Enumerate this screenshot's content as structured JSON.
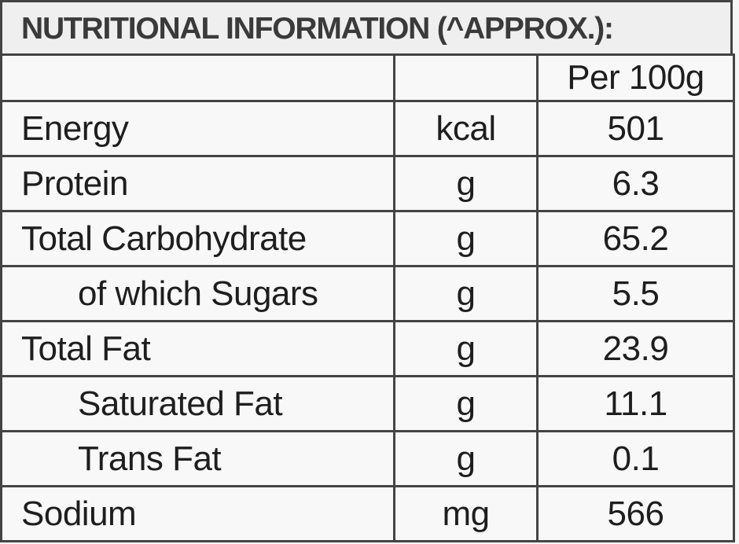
{
  "title": "NUTRITIONAL INFORMATION (^APPROX.):",
  "table": {
    "header": [
      "",
      "",
      "Per 100g"
    ],
    "rows": [
      [
        "Energy",
        "kcal",
        "501"
      ],
      [
        "Protein",
        "g",
        "6.3"
      ],
      [
        "Total Carbohydrate",
        "g",
        "65.2"
      ],
      [
        "of which Sugars",
        "g",
        "5.5"
      ],
      [
        "Total Fat",
        "g",
        "23.9"
      ],
      [
        "Saturated Fat",
        "g",
        "11.1"
      ],
      [
        "Trans Fat",
        "g",
        "0.1"
      ],
      [
        "Sodium",
        "mg",
        "566"
      ]
    ]
  }
}
